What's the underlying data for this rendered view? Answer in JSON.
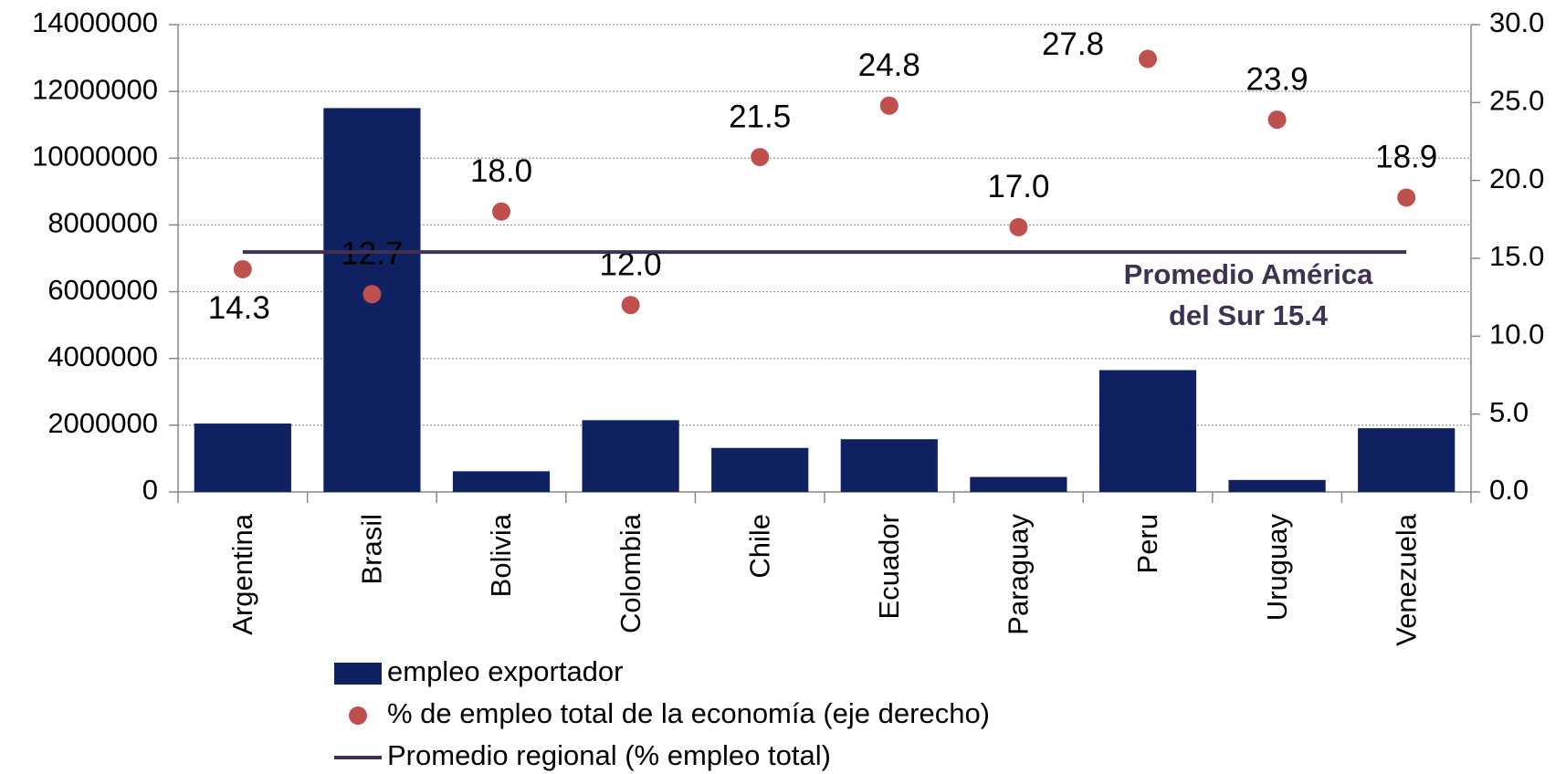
{
  "chart_data": {
    "type": "bar",
    "categories": [
      "Argentina",
      "Brasil",
      "Bolivia",
      "Colombia",
      "Chile",
      "Ecuador",
      "Paraguay",
      "Peru",
      "Uruguay",
      "Venezuela"
    ],
    "series": [
      {
        "name": "empleo exportador",
        "type": "bar",
        "color": "#0f2161",
        "values": [
          2050000,
          11500000,
          620000,
          2150000,
          1320000,
          1580000,
          450000,
          3650000,
          360000,
          1910000
        ]
      },
      {
        "name": "% de  empleo total de la economía (eje derecho)",
        "type": "scatter",
        "axis": "y2",
        "color": "#c0504d",
        "values": [
          14.3,
          12.7,
          18.0,
          12.0,
          21.5,
          24.8,
          17.0,
          27.8,
          23.9,
          18.9
        ],
        "value_labels": [
          "14.3",
          "12.7",
          "18.0",
          "12.0",
          "21.5",
          "24.8",
          "17.0",
          "27.8",
          "23.9",
          "18.9"
        ]
      },
      {
        "name": "Promedio regional (% empleo total)",
        "type": "hline",
        "axis": "y2",
        "color": "#3f3151",
        "value": 15.4
      }
    ],
    "annotation": [
      "Promedio América",
      "del  Sur  15.4"
    ],
    "ylim": [
      0,
      14000000
    ],
    "yticks": [
      0,
      2000000,
      4000000,
      6000000,
      8000000,
      10000000,
      12000000,
      14000000
    ],
    "y2lim": [
      0,
      30
    ],
    "y2ticks": [
      {
        "value": 0,
        "label": "0.0"
      },
      {
        "value": 5,
        "label": "5.0"
      },
      {
        "value": 10,
        "label": "10.0"
      },
      {
        "value": 15,
        "label": "15.0"
      },
      {
        "value": 20,
        "label": "20.0"
      },
      {
        "value": 25,
        "label": "25.0"
      },
      {
        "value": 30,
        "label": "30.0"
      }
    ],
    "grid": true
  }
}
